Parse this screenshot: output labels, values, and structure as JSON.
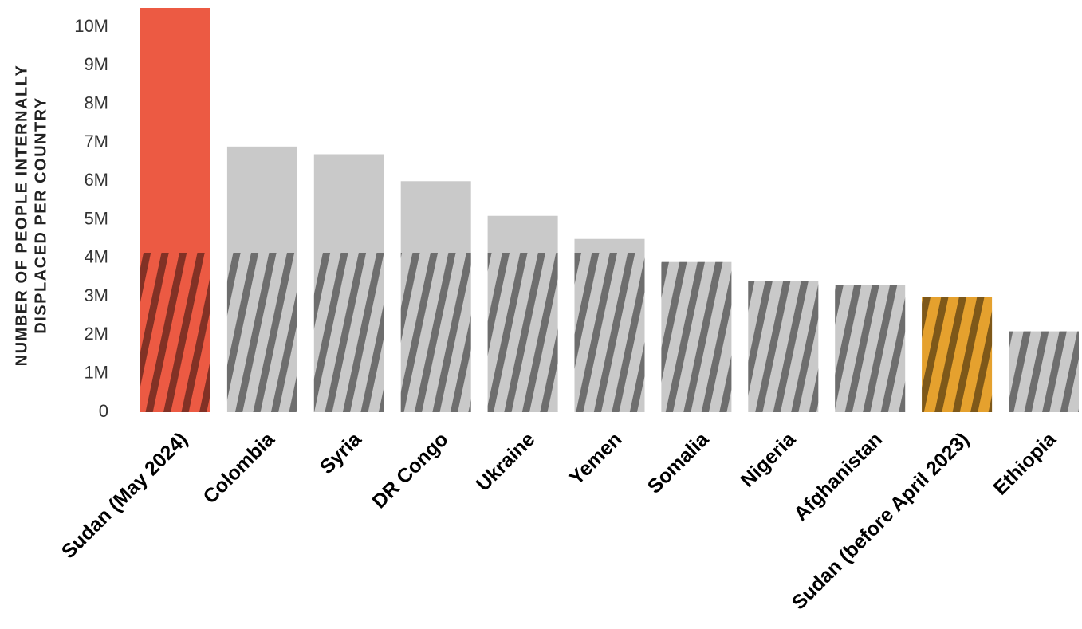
{
  "chart_data": {
    "type": "bar",
    "ylabel": [
      "NUMBER OF PEOPLE INTERNALLY",
      "DISPLACED PER COUNTRY"
    ],
    "categories": [
      "Sudan (May 2024)",
      "Colombia",
      "Syria",
      "DR Congo",
      "Ukraine",
      "Yemen",
      "Somalia",
      "Nigeria",
      "Afghanistan",
      "Sudan (before April 2023)",
      "Ethiopia"
    ],
    "values": [
      10500000,
      6900000,
      6700000,
      6000000,
      5100000,
      4500000,
      3900000,
      3400000,
      3300000,
      3000000,
      2100000
    ],
    "colors": [
      "#ec5a43",
      "#c9c9c9",
      "#c9c9c9",
      "#c9c9c9",
      "#c9c9c9",
      "#c9c9c9",
      "#c9c9c9",
      "#c9c9c9",
      "#c9c9c9",
      "#e5a12e",
      "#c9c9c9"
    ],
    "ylim": [
      0,
      10500000
    ],
    "yticks": [
      0,
      {
        "value": 1000000,
        "label": "1M"
      },
      {
        "value": 2000000,
        "label": "2M"
      },
      {
        "value": 3000000,
        "label": "3M"
      },
      {
        "value": 4000000,
        "label": "4M"
      },
      {
        "value": 5000000,
        "label": "5M"
      },
      {
        "value": 6000000,
        "label": "6M"
      },
      {
        "value": 7000000,
        "label": "7M"
      },
      {
        "value": 8000000,
        "label": "8M"
      },
      {
        "value": 9000000,
        "label": "9M"
      },
      {
        "value": 10000000,
        "label": "10M"
      }
    ],
    "grid": false
  }
}
